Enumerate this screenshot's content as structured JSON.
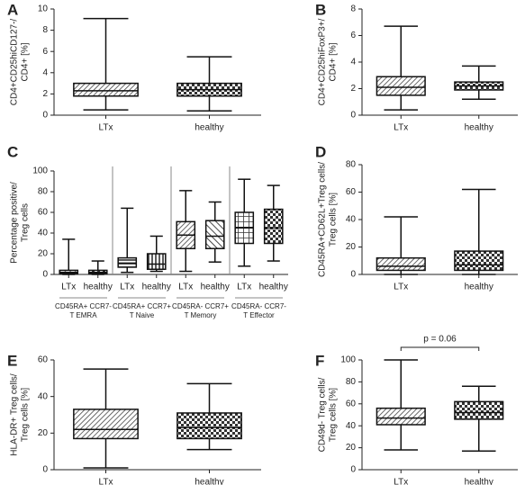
{
  "chart_data": [
    {
      "type": "box",
      "label": "A",
      "ylabel": [
        "CD4+CD25hiCD127-/",
        "CD4+ [%]"
      ],
      "categories": [
        "LTx",
        "healthy"
      ],
      "ylim": [
        0,
        10
      ],
      "yticks": [
        0,
        2,
        4,
        6,
        8,
        10
      ],
      "boxes": [
        {
          "min": 0.5,
          "q1": 1.8,
          "median": 2.3,
          "q3": 3.0,
          "max": 9.1
        },
        {
          "min": 0.4,
          "q1": 1.8,
          "median": 2.4,
          "q3": 3.0,
          "max": 5.5
        }
      ]
    },
    {
      "type": "box",
      "label": "B",
      "ylabel": [
        "CD4+CD25hiFoxP3+/",
        "CD4+ [%]"
      ],
      "categories": [
        "LTx",
        "healthy"
      ],
      "ylim": [
        0,
        8
      ],
      "yticks": [
        0,
        2,
        4,
        6,
        8
      ],
      "boxes": [
        {
          "min": 0.4,
          "q1": 1.5,
          "median": 2.1,
          "q3": 2.9,
          "max": 6.7
        },
        {
          "min": 1.2,
          "q1": 1.9,
          "median": 2.2,
          "q3": 2.5,
          "max": 3.7
        }
      ]
    },
    {
      "type": "box",
      "label": "C",
      "ylabel": [
        "Percentage positive/",
        "Treg cells"
      ],
      "categories": [
        "LTx",
        "healthy",
        "LTx",
        "healthy",
        "LTx",
        "healthy",
        "LTx",
        "healthy"
      ],
      "ylim": [
        0,
        100
      ],
      "yticks": [
        0,
        20,
        40,
        60,
        80,
        100
      ],
      "groups": [
        [
          "CD45RA+ CCR7-",
          "T EMRA"
        ],
        [
          "CD45RA+ CCR7+",
          "T Naive"
        ],
        [
          "CD45RA- CCR7+",
          "T Memory"
        ],
        [
          "CD45RA- CCR7-",
          "T Effector"
        ]
      ],
      "boxes": [
        {
          "min": 0,
          "q1": 1,
          "median": 2,
          "q3": 4,
          "max": 34
        },
        {
          "min": 0,
          "q1": 1,
          "median": 2,
          "q3": 4,
          "max": 13
        },
        {
          "min": 2,
          "q1": 7,
          "median": 11,
          "q3": 16,
          "max": 64
        },
        {
          "min": 3,
          "q1": 5,
          "median": 10,
          "q3": 20,
          "max": 37
        },
        {
          "min": 3,
          "q1": 25,
          "median": 38,
          "q3": 51,
          "max": 81
        },
        {
          "min": 12,
          "q1": 25,
          "median": 37,
          "q3": 52,
          "max": 70
        },
        {
          "min": 8,
          "q1": 30,
          "median": 45,
          "q3": 60,
          "max": 92
        },
        {
          "min": 13,
          "q1": 30,
          "median": 45,
          "q3": 63,
          "max": 86
        }
      ]
    },
    {
      "type": "box",
      "label": "D",
      "ylabel": [
        "CD45RA+CD62L+Treg cells/",
        "Treg cells [%]"
      ],
      "categories": [
        "LTx",
        "healthy"
      ],
      "ylim": [
        0,
        80
      ],
      "yticks": [
        0,
        20,
        40,
        60,
        80
      ],
      "boxes": [
        {
          "min": 0,
          "q1": 3,
          "median": 6,
          "q3": 12,
          "max": 42
        },
        {
          "min": 0,
          "q1": 3,
          "median": 7,
          "q3": 17,
          "max": 62
        }
      ]
    },
    {
      "type": "box",
      "label": "E",
      "ylabel": [
        "HLA-DR+ Treg cells/",
        "Treg cells [%]"
      ],
      "categories": [
        "LTx",
        "healthy"
      ],
      "ylim": [
        0,
        60
      ],
      "yticks": [
        0,
        20,
        40,
        60
      ],
      "boxes": [
        {
          "min": 1,
          "q1": 17,
          "median": 22,
          "q3": 33,
          "max": 55
        },
        {
          "min": 11,
          "q1": 17,
          "median": 23,
          "q3": 31,
          "max": 47
        }
      ]
    },
    {
      "type": "box",
      "label": "F",
      "ylabel": [
        "CD49d- Treg cells/",
        "Treg cells [%]"
      ],
      "categories": [
        "LTx",
        "healthy"
      ],
      "ylim": [
        0,
        100
      ],
      "yticks": [
        0,
        20,
        40,
        60,
        80,
        100
      ],
      "annotation": "p = 0.06",
      "boxes": [
        {
          "min": 18,
          "q1": 41,
          "median": 47,
          "q3": 56,
          "max": 100
        },
        {
          "min": 17,
          "q1": 46,
          "median": 52,
          "q3": 62,
          "max": 76
        }
      ]
    }
  ]
}
